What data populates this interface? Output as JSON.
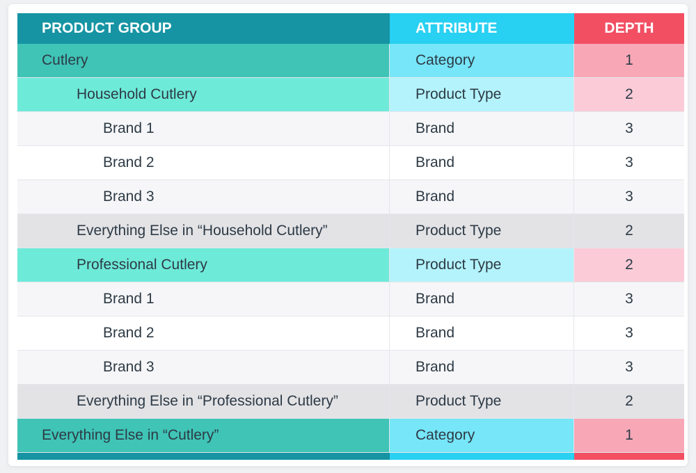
{
  "header": {
    "product_group": "PRODUCT GROUP",
    "attribute": "ATTRIBUTE",
    "depth": "DEPTH"
  },
  "rows": [
    {
      "product_group": "Cutlery",
      "attribute": "Category",
      "depth": "1",
      "kind": "category",
      "indent": 0
    },
    {
      "product_group": "Household Cutlery",
      "attribute": "Product Type",
      "depth": "2",
      "kind": "type",
      "indent": 1
    },
    {
      "product_group": "Brand 1",
      "attribute": "Brand",
      "depth": "3",
      "kind": "brand-a",
      "indent": 2
    },
    {
      "product_group": "Brand 2",
      "attribute": "Brand",
      "depth": "3",
      "kind": "brand-b",
      "indent": 2
    },
    {
      "product_group": "Brand 3",
      "attribute": "Brand",
      "depth": "3",
      "kind": "brand-a",
      "indent": 2
    },
    {
      "product_group": "Everything Else in “Household Cutlery”",
      "attribute": "Product Type",
      "depth": "2",
      "kind": "else",
      "indent": 1
    },
    {
      "product_group": "Professional Cutlery",
      "attribute": "Product Type",
      "depth": "2",
      "kind": "type",
      "indent": 1
    },
    {
      "product_group": "Brand 1",
      "attribute": "Brand",
      "depth": "3",
      "kind": "brand-a",
      "indent": 2
    },
    {
      "product_group": "Brand 2",
      "attribute": "Brand",
      "depth": "3",
      "kind": "brand-b",
      "indent": 2
    },
    {
      "product_group": "Brand 3",
      "attribute": "Brand",
      "depth": "3",
      "kind": "brand-a",
      "indent": 2
    },
    {
      "product_group": "Everything Else in “Professional Cutlery”",
      "attribute": "Product Type",
      "depth": "2",
      "kind": "else",
      "indent": 1
    },
    {
      "product_group": "Everything Else in “Cutlery”",
      "attribute": "Category",
      "depth": "1",
      "kind": "category",
      "indent": 0
    }
  ],
  "colors": {
    "header_product_group": "#1694a3",
    "header_attribute": "#28d0f2",
    "header_depth": "#f24f63"
  }
}
